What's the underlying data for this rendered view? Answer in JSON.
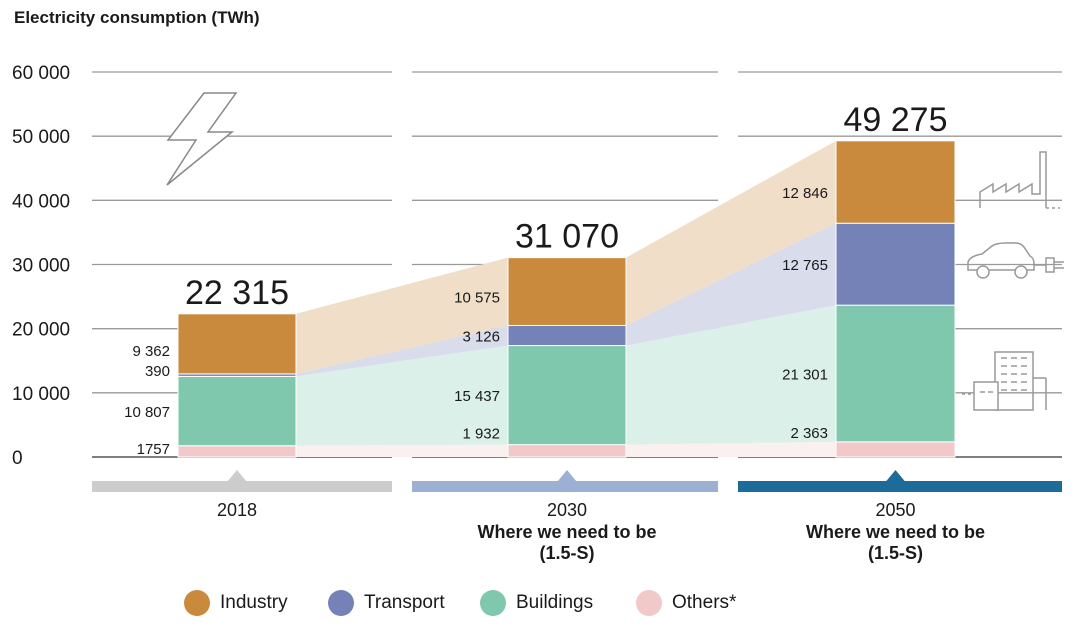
{
  "chart_data": {
    "type": "bar",
    "title": "Electricity consumption (TWh)",
    "ylabel": "Electricity consumption (TWh)",
    "ylim": [
      0,
      60000
    ],
    "yticks": [
      0,
      10000,
      20000,
      30000,
      40000,
      50000,
      60000
    ],
    "ytick_labels": [
      "0",
      "10 000",
      "20 000",
      "30 000",
      "40 000",
      "50 000",
      "60 000"
    ],
    "categories": [
      "2018",
      "2030",
      "2050"
    ],
    "category_subtitles": [
      "",
      "Where we need to be\n(1.5-S)",
      "Where we need to be\n(1.5-S)"
    ],
    "totals": [
      22315,
      31070,
      49275
    ],
    "total_labels": [
      "22 315",
      "31 070",
      "49 275"
    ],
    "series": [
      {
        "name": "Others*",
        "color": "#f2c9c9",
        "values": [
          1757,
          1932,
          2363
        ],
        "labels": [
          "1757",
          "1 932",
          "2 363"
        ]
      },
      {
        "name": "Buildings",
        "color": "#7fc8ae",
        "values": [
          10807,
          15437,
          21301
        ],
        "labels": [
          "10 807",
          "15 437",
          "21 301"
        ]
      },
      {
        "name": "Transport",
        "color": "#7582b8",
        "values": [
          390,
          3126,
          12765
        ],
        "labels": [
          "390",
          "3 126",
          "12 765"
        ]
      },
      {
        "name": "Industry",
        "color": "#c98a3e",
        "values": [
          9362,
          10575,
          12846
        ],
        "labels": [
          "9 362",
          "10 575",
          "12 846"
        ]
      }
    ],
    "legend_order": [
      "Industry",
      "Transport",
      "Buildings",
      "Others*"
    ],
    "timeline_colors": [
      "#cccccc",
      "#9bb0d3",
      "#1c6b99"
    ],
    "legend_position": "bottom"
  },
  "icons": [
    "lightning-icon",
    "factory-icon",
    "car-icon",
    "building-icon"
  ]
}
